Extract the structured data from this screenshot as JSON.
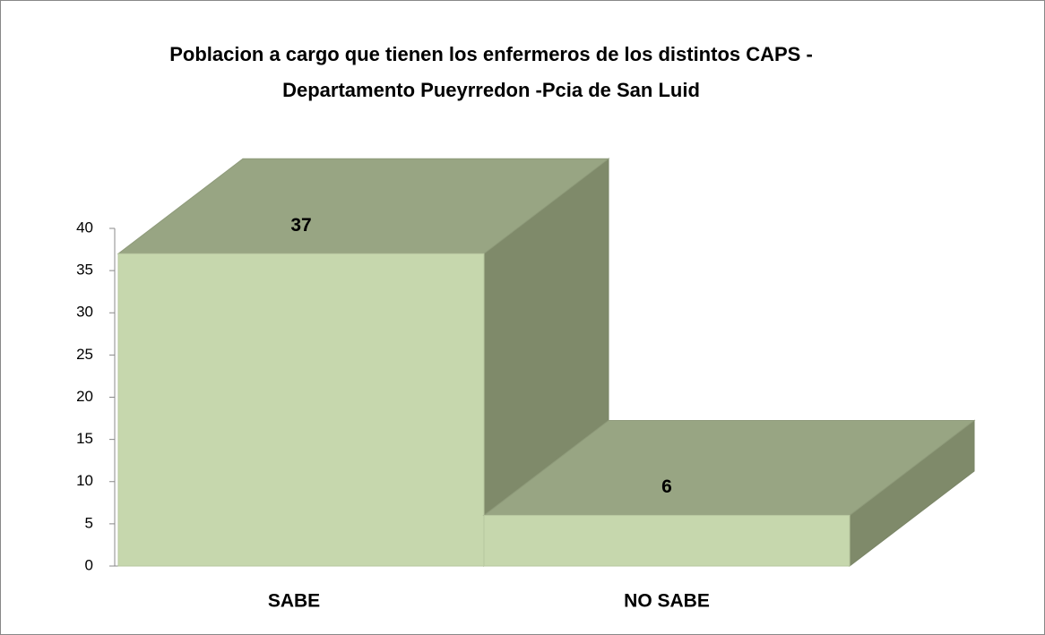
{
  "chart_data": {
    "type": "bar3d",
    "title": [
      "Poblacion a cargo que tienen los enfermeros de los distintos CAPS  -",
      "Departamento Pueyrredon -Pcia de San Luid"
    ],
    "categories": [
      "SABE",
      "NO SABE"
    ],
    "values": [
      37,
      6
    ],
    "color": "#c6d7ad",
    "ylim": [
      0,
      40
    ],
    "yticks": [
      0,
      5,
      10,
      15,
      20,
      25,
      30,
      35,
      40
    ]
  }
}
